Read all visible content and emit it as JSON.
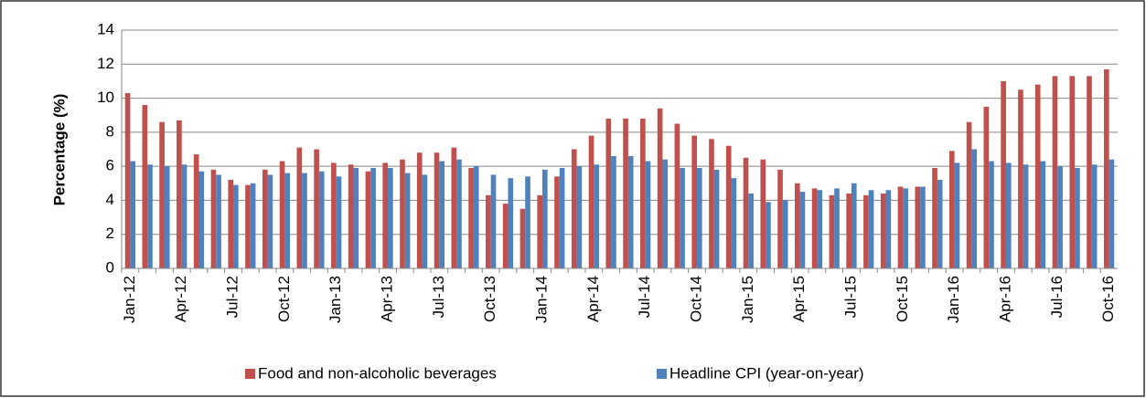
{
  "chart_data": {
    "type": "bar",
    "y_label": "Percentage (%)",
    "categories": [
      "Jan-12",
      null,
      null,
      "Apr-12",
      null,
      null,
      "Jul-12",
      null,
      null,
      "Oct-12",
      null,
      null,
      "Jan-13",
      null,
      null,
      "Apr-13",
      null,
      null,
      "Jul-13",
      null,
      null,
      "Oct-13",
      null,
      null,
      "Jan-14",
      null,
      null,
      "Apr-14",
      null,
      null,
      "Jul-14",
      null,
      null,
      "Oct-14",
      null,
      null,
      "Jan-15",
      null,
      null,
      "Apr-15",
      null,
      null,
      "Jul-15",
      null,
      null,
      "Oct-15",
      null,
      null,
      "Jan-16",
      null,
      null,
      "Apr-16",
      null,
      null,
      "Jul-16",
      null,
      null,
      "Oct-16"
    ],
    "series": [
      {
        "name": "Food and non-alcoholic beverages",
        "color": "#c0504d",
        "values": [
          10.3,
          9.6,
          8.6,
          8.7,
          6.7,
          5.8,
          5.2,
          4.9,
          5.8,
          6.3,
          7.1,
          7.0,
          6.2,
          6.1,
          5.7,
          6.2,
          6.4,
          6.8,
          6.8,
          7.1,
          5.9,
          4.3,
          3.8,
          3.5,
          4.3,
          5.4,
          7.0,
          7.8,
          8.8,
          8.8,
          8.8,
          9.4,
          8.5,
          7.8,
          7.6,
          7.2,
          6.5,
          6.4,
          5.8,
          5.0,
          4.7,
          4.3,
          4.4,
          4.3,
          4.4,
          4.8,
          4.8,
          5.9,
          6.9,
          8.6,
          9.5,
          11.0,
          10.5,
          10.8,
          11.3,
          11.3,
          11.3,
          11.7
        ]
      },
      {
        "name": "Headline CPI (year-on-year)",
        "color": "#4f81bd",
        "values": [
          6.3,
          6.1,
          6.0,
          6.1,
          5.7,
          5.5,
          4.9,
          5.0,
          5.5,
          5.6,
          5.6,
          5.7,
          5.4,
          5.9,
          5.9,
          5.9,
          5.6,
          5.5,
          6.3,
          6.4,
          6.0,
          5.5,
          5.3,
          5.4,
          5.8,
          5.9,
          6.0,
          6.1,
          6.6,
          6.6,
          6.3,
          6.4,
          5.9,
          5.9,
          5.8,
          5.3,
          4.4,
          3.9,
          4.0,
          4.5,
          4.6,
          4.7,
          5.0,
          4.6,
          4.6,
          4.7,
          4.8,
          5.2,
          6.2,
          7.0,
          6.3,
          6.2,
          6.1,
          6.3,
          6.0,
          5.9,
          6.1,
          6.4
        ]
      }
    ],
    "ylim": [
      0,
      14
    ],
    "yticks": [
      0,
      2,
      4,
      6,
      8,
      10,
      12,
      14
    ],
    "grid": true
  }
}
